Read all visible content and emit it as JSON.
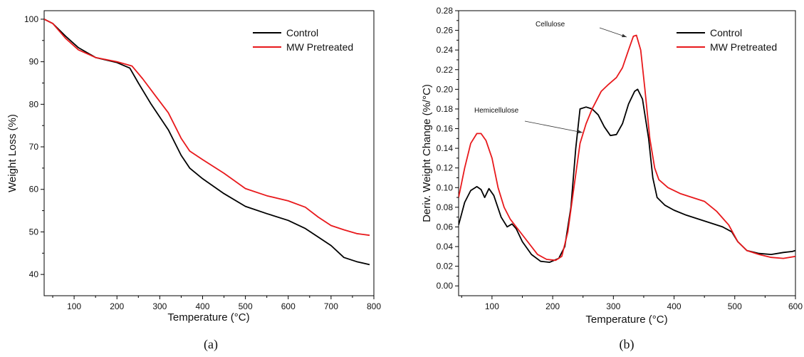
{
  "chart_data": [
    {
      "type": "line",
      "panel_label": "(a)",
      "xlabel": "Temperature (°C)",
      "ylabel": "Weight Loss (%)",
      "xlim": [
        30,
        800
      ],
      "ylim": [
        35,
        102
      ],
      "xticks": [
        100,
        200,
        300,
        400,
        500,
        600,
        700,
        800
      ],
      "yticks": [
        40,
        50,
        60,
        70,
        80,
        90,
        100
      ],
      "legend": "top-right",
      "series": [
        {
          "name": "Control",
          "color": "#000000",
          "points": [
            [
              30,
              100
            ],
            [
              50,
              99
            ],
            [
              80,
              96
            ],
            [
              110,
              93.3
            ],
            [
              150,
              91
            ],
            [
              200,
              89.8
            ],
            [
              230,
              88.5
            ],
            [
              250,
              85
            ],
            [
              280,
              80
            ],
            [
              320,
              74
            ],
            [
              350,
              68
            ],
            [
              370,
              65
            ],
            [
              400,
              62.5
            ],
            [
              450,
              59
            ],
            [
              500,
              56
            ],
            [
              550,
              54.3
            ],
            [
              600,
              52.7
            ],
            [
              640,
              50.8
            ],
            [
              670,
              48.8
            ],
            [
              700,
              46.8
            ],
            [
              730,
              44
            ],
            [
              760,
              43
            ],
            [
              790,
              42.3
            ]
          ]
        },
        {
          "name": "MW Pretreated",
          "color": "#e8191c",
          "points": [
            [
              30,
              100
            ],
            [
              50,
              99
            ],
            [
              80,
              95.5
            ],
            [
              110,
              92.8
            ],
            [
              150,
              91
            ],
            [
              200,
              90
            ],
            [
              235,
              89
            ],
            [
              260,
              86
            ],
            [
              290,
              82
            ],
            [
              320,
              78
            ],
            [
              350,
              72
            ],
            [
              370,
              69
            ],
            [
              400,
              67
            ],
            [
              450,
              63.8
            ],
            [
              500,
              60.2
            ],
            [
              550,
              58.5
            ],
            [
              600,
              57.3
            ],
            [
              640,
              55.8
            ],
            [
              670,
              53.5
            ],
            [
              700,
              51.5
            ],
            [
              730,
              50.5
            ],
            [
              760,
              49.6
            ],
            [
              790,
              49.2
            ]
          ]
        }
      ]
    },
    {
      "type": "line",
      "panel_label": "(b)",
      "xlabel": "Temperature (°C)",
      "ylabel": "Deriv. Weight Change (%/°C)",
      "xlim": [
        45,
        600
      ],
      "ylim": [
        -0.01,
        0.28
      ],
      "xticks": [
        100,
        200,
        300,
        400,
        500,
        600
      ],
      "yticks": [
        0.0,
        0.02,
        0.04,
        0.06,
        0.08,
        0.1,
        0.12,
        0.14,
        0.16,
        0.18,
        0.2,
        0.22,
        0.24,
        0.26,
        0.28
      ],
      "legend": "top-right",
      "annotations": [
        {
          "text": "Cellulose",
          "x": 335,
          "y": 0.255
        },
        {
          "text": "Hemicellulose",
          "x": 240,
          "y": 0.18
        }
      ],
      "series": [
        {
          "name": "Control",
          "color": "#000000",
          "points": [
            [
              45,
              0.062
            ],
            [
              55,
              0.085
            ],
            [
              65,
              0.097
            ],
            [
              75,
              0.101
            ],
            [
              82,
              0.098
            ],
            [
              88,
              0.09
            ],
            [
              95,
              0.099
            ],
            [
              103,
              0.092
            ],
            [
              115,
              0.07
            ],
            [
              125,
              0.06
            ],
            [
              133,
              0.063
            ],
            [
              140,
              0.058
            ],
            [
              150,
              0.045
            ],
            [
              165,
              0.032
            ],
            [
              180,
              0.025
            ],
            [
              195,
              0.024
            ],
            [
              210,
              0.028
            ],
            [
              220,
              0.04
            ],
            [
              230,
              0.08
            ],
            [
              238,
              0.14
            ],
            [
              245,
              0.18
            ],
            [
              255,
              0.182
            ],
            [
              265,
              0.18
            ],
            [
              275,
              0.174
            ],
            [
              285,
              0.162
            ],
            [
              295,
              0.153
            ],
            [
              305,
              0.154
            ],
            [
              315,
              0.165
            ],
            [
              325,
              0.185
            ],
            [
              335,
              0.198
            ],
            [
              340,
              0.2
            ],
            [
              348,
              0.19
            ],
            [
              358,
              0.15
            ],
            [
              365,
              0.11
            ],
            [
              372,
              0.09
            ],
            [
              385,
              0.082
            ],
            [
              400,
              0.077
            ],
            [
              420,
              0.072
            ],
            [
              440,
              0.068
            ],
            [
              460,
              0.064
            ],
            [
              480,
              0.06
            ],
            [
              495,
              0.055
            ],
            [
              505,
              0.045
            ],
            [
              520,
              0.036
            ],
            [
              540,
              0.033
            ],
            [
              560,
              0.032
            ],
            [
              580,
              0.034
            ],
            [
              595,
              0.035
            ],
            [
              600,
              0.036
            ]
          ]
        },
        {
          "name": "MW Pretreated",
          "color": "#e8191c",
          "points": [
            [
              45,
              0.09
            ],
            [
              55,
              0.12
            ],
            [
              65,
              0.145
            ],
            [
              75,
              0.155
            ],
            [
              82,
              0.155
            ],
            [
              90,
              0.148
            ],
            [
              100,
              0.13
            ],
            [
              110,
              0.1
            ],
            [
              120,
              0.08
            ],
            [
              130,
              0.068
            ],
            [
              145,
              0.056
            ],
            [
              160,
              0.044
            ],
            [
              175,
              0.032
            ],
            [
              190,
              0.027
            ],
            [
              205,
              0.026
            ],
            [
              215,
              0.03
            ],
            [
              225,
              0.055
            ],
            [
              235,
              0.1
            ],
            [
              245,
              0.145
            ],
            [
              255,
              0.165
            ],
            [
              265,
              0.18
            ],
            [
              280,
              0.198
            ],
            [
              292,
              0.205
            ],
            [
              305,
              0.212
            ],
            [
              315,
              0.222
            ],
            [
              325,
              0.24
            ],
            [
              333,
              0.254
            ],
            [
              338,
              0.255
            ],
            [
              345,
              0.24
            ],
            [
              352,
              0.2
            ],
            [
              360,
              0.15
            ],
            [
              368,
              0.12
            ],
            [
              375,
              0.108
            ],
            [
              390,
              0.1
            ],
            [
              410,
              0.094
            ],
            [
              430,
              0.09
            ],
            [
              450,
              0.086
            ],
            [
              470,
              0.076
            ],
            [
              490,
              0.062
            ],
            [
              505,
              0.045
            ],
            [
              520,
              0.036
            ],
            [
              540,
              0.032
            ],
            [
              560,
              0.029
            ],
            [
              580,
              0.028
            ],
            [
              600,
              0.03
            ]
          ]
        }
      ]
    }
  ]
}
